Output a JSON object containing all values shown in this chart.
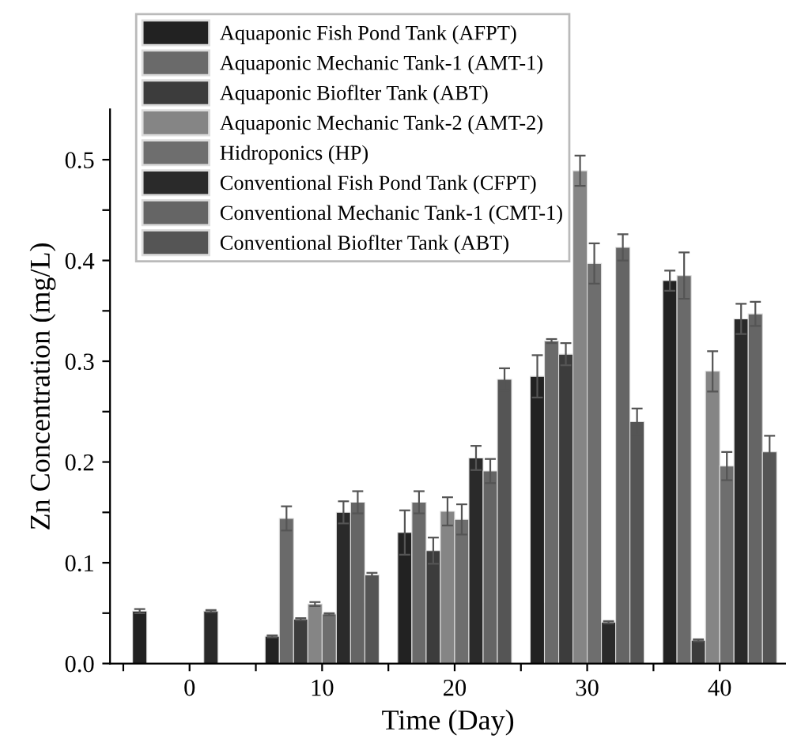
{
  "chart_data": {
    "type": "bar",
    "xlabel": "Time (Day)",
    "ylabel": "Zn Concentration (mg/L)",
    "x": [
      0,
      10,
      20,
      30,
      40
    ],
    "xlim": [
      -6,
      45
    ],
    "xticks": [
      {
        "value": -5,
        "label": null
      },
      0,
      {
        "value": 5,
        "label": null
      },
      10,
      {
        "value": 15,
        "label": null
      },
      20,
      {
        "value": 25,
        "label": null
      },
      30,
      {
        "value": 35,
        "label": null
      },
      40
    ],
    "ylim": [
      0,
      0.55
    ],
    "yticks": [
      {
        "value": 0,
        "label": "0.0"
      },
      {
        "value": 0.05,
        "label": null
      },
      0.1,
      {
        "value": 0.15,
        "label": null
      },
      0.2,
      {
        "value": 0.25,
        "label": null
      },
      0.3,
      {
        "value": 0.35,
        "label": null
      },
      0.4,
      {
        "value": 0.45,
        "label": null
      },
      0.5
    ],
    "legend": "top left",
    "grid": false,
    "series": [
      {
        "name": "Aquaponic Fish Pond Tank (AFPT)",
        "color": "#222222",
        "values": [
          0.052,
          0.027,
          0.13,
          0.285,
          0.38
        ],
        "errors": [
          0.002,
          0.001,
          0.022,
          0.021,
          0.01
        ]
      },
      {
        "name": "Aquaponic Mechanic Tank-1 (AMT-1)",
        "color": "#6a6a6a",
        "values": [
          null,
          0.144,
          0.16,
          0.32,
          0.385
        ],
        "errors": [
          null,
          0.012,
          0.011,
          0.002,
          0.023
        ]
      },
      {
        "name": "Aquaponic Bioflter Tank (ABT)",
        "color": "#3c3c3c",
        "values": [
          null,
          0.044,
          0.112,
          0.307,
          0.023
        ],
        "errors": [
          null,
          0.001,
          0.013,
          0.011,
          0.001
        ]
      },
      {
        "name": "Aquaponic Mechanic Tank-2 (AMT-2)",
        "color": "#858585",
        "values": [
          null,
          0.059,
          0.151,
          0.489,
          0.29
        ],
        "errors": [
          null,
          0.002,
          0.014,
          0.015,
          0.02
        ]
      },
      {
        "name": "Hidroponics (HP)",
        "color": "#6e6e6e",
        "values": [
          null,
          0.049,
          0.143,
          0.397,
          0.196
        ],
        "errors": [
          null,
          0.001,
          0.015,
          0.02,
          0.014
        ]
      },
      {
        "name": "Conventional Fish Pond Tank (CFPT)",
        "color": "#2a2a2a",
        "values": [
          0.052,
          0.15,
          0.204,
          0.041,
          0.342
        ],
        "errors": [
          0.001,
          0.011,
          0.012,
          0.001,
          0.015
        ]
      },
      {
        "name": "Conventional Mechanic Tank-1 (CMT-1)",
        "color": "#656565",
        "values": [
          null,
          0.16,
          0.191,
          0.413,
          0.347
        ],
        "errors": [
          null,
          0.011,
          0.012,
          0.013,
          0.012
        ]
      },
      {
        "name": "Conventional Bioflter Tank (ABT)",
        "color": "#555555",
        "values": [
          null,
          0.088,
          0.282,
          0.24,
          0.21
        ],
        "errors": [
          null,
          0.002,
          0.011,
          0.013,
          0.016
        ]
      }
    ]
  }
}
